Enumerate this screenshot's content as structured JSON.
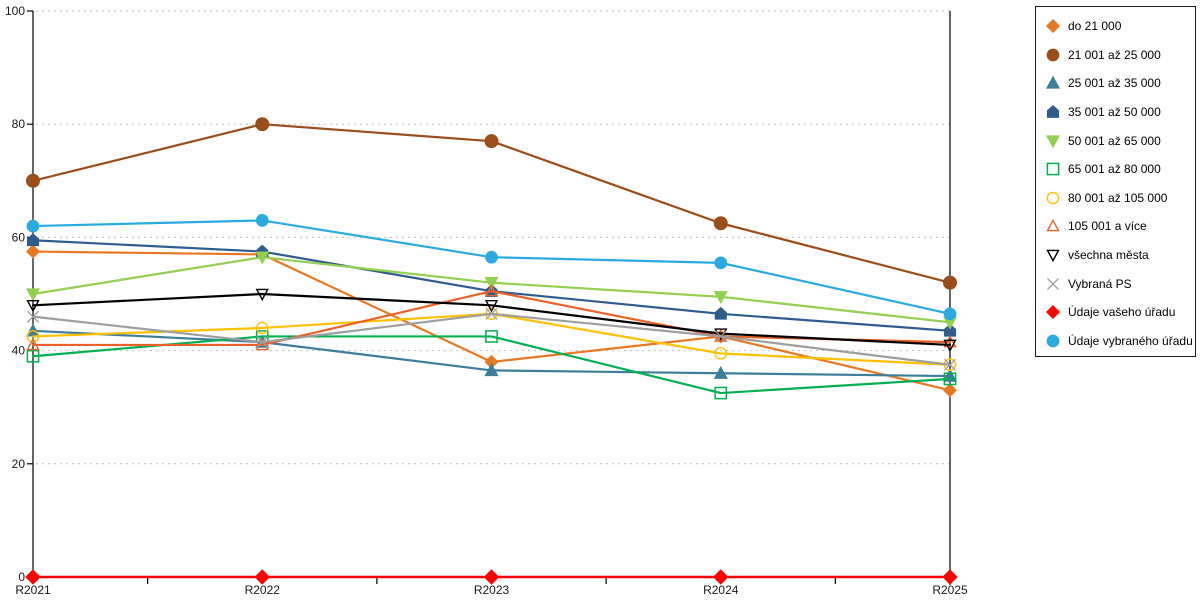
{
  "chart_data": {
    "type": "line",
    "title": "",
    "xlabel": "",
    "ylabel": "",
    "categories": [
      "R2021",
      "R2022",
      "R2023",
      "R2024",
      "R2025"
    ],
    "ylim": [
      0,
      100
    ],
    "yticks": [
      0,
      20,
      40,
      60,
      80,
      100
    ],
    "grid": "horizontal dotted gridlines at each y tick",
    "legend_position": "right, boxed",
    "series": [
      {
        "name": "do 21 000",
        "marker": "diamond",
        "fill": "solid",
        "color": "#E87722",
        "values": [
          57.5,
          57,
          38,
          42.5,
          33
        ]
      },
      {
        "name": "21 001 až 25 000",
        "marker": "circle",
        "fill": "solid",
        "color": "#9B4D1A",
        "values": [
          70,
          80,
          77,
          62.5,
          52
        ]
      },
      {
        "name": "25 001 až 35 000",
        "marker": "triangle-up",
        "fill": "solid",
        "color": "#3D7E9A",
        "values": [
          43.5,
          41.5,
          36.5,
          36,
          35.5
        ]
      },
      {
        "name": "35 001 až 50 000",
        "marker": "pentagon",
        "fill": "solid",
        "color": "#2E5C8F",
        "values": [
          59.5,
          57.5,
          50.5,
          46.5,
          43.5
        ]
      },
      {
        "name": "50 001 až 65 000",
        "marker": "triangle-down",
        "fill": "solid",
        "color": "#92D050",
        "values": [
          50,
          56.5,
          52,
          49.5,
          45
        ]
      },
      {
        "name": "65 001 až 80 000",
        "marker": "square",
        "fill": "open",
        "color": "#00B050",
        "values": [
          39,
          42.5,
          42.5,
          32.5,
          35
        ]
      },
      {
        "name": "80 001 až 105 000",
        "marker": "circle",
        "fill": "open",
        "color": "#FFC000",
        "values": [
          42.5,
          44,
          46.5,
          39.5,
          37.5
        ]
      },
      {
        "name": "105 001 a více",
        "marker": "triangle-up",
        "fill": "open",
        "color": "#E8622A",
        "values": [
          41,
          41,
          50.5,
          42.5,
          41.5
        ]
      },
      {
        "name": "všechna města",
        "marker": "triangle-down",
        "fill": "open",
        "color": "#000000",
        "values": [
          48,
          50,
          48,
          43,
          41
        ]
      },
      {
        "name": "Vybraná PS",
        "marker": "x",
        "fill": "line",
        "color": "#9E9E9E",
        "values": [
          46,
          41.5,
          46.5,
          42.5,
          37.5
        ]
      },
      {
        "name": "Údaje vašeho úřadu",
        "marker": "diamond",
        "fill": "solid",
        "color": "#FF0000",
        "values": [
          0,
          0,
          0,
          0,
          0
        ]
      },
      {
        "name": "Údaje vybraného úřadu",
        "marker": "circle",
        "fill": "solid",
        "color": "#29ABE2",
        "values": [
          62,
          63,
          56.5,
          55.5,
          46.5
        ]
      }
    ]
  }
}
